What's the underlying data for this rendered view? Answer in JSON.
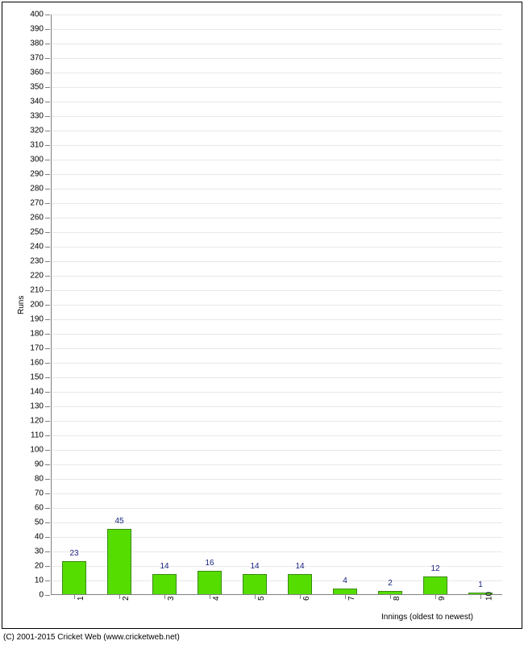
{
  "chart": {
    "type": "bar",
    "y_axis": {
      "title": "Runs",
      "min": 0,
      "max": 400,
      "tick_step": 10,
      "label_fontsize": 10,
      "axis_color": "#808080",
      "grid_color": "#e8e8e8"
    },
    "x_axis": {
      "title": "Innings (oldest to newest)",
      "categories": [
        "1",
        "2",
        "3",
        "4",
        "5",
        "6",
        "7",
        "8",
        "9",
        "10"
      ],
      "label_fontsize": 10,
      "axis_color": "#808080"
    },
    "bars": {
      "values": [
        23,
        45,
        14,
        16,
        14,
        14,
        4,
        2,
        12,
        1
      ],
      "color": "#55dd00",
      "border_color": "#3c8a0e",
      "label_color": "#1a237e",
      "label_fontsize": 10,
      "width_fraction": 0.55
    },
    "background_color": "#ffffff",
    "border_color": "#000000"
  },
  "copyright": "(C) 2001-2015 Cricket Web (www.cricketweb.net)"
}
